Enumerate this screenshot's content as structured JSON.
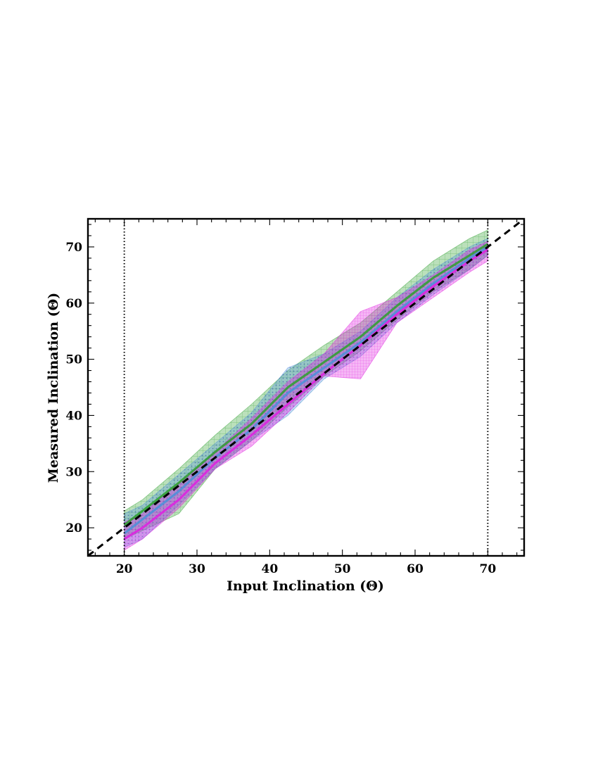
{
  "chart_data": {
    "type": "line",
    "xlabel": "Input Inclination (Θ)",
    "ylabel": "Measured Inclination (Θ)",
    "xlim": [
      15,
      75
    ],
    "ylim": [
      15,
      75
    ],
    "xticks": [
      20,
      30,
      40,
      50,
      60,
      70
    ],
    "yticks": [
      20,
      30,
      40,
      50,
      60,
      70
    ],
    "grid": false,
    "reference_lines": {
      "one_to_one": {
        "style": "dashed",
        "color": "#000000"
      },
      "vertical": [
        20,
        70
      ]
    },
    "series": [
      {
        "color": "#2ca02c",
        "x": [
          20,
          22.5,
          27.5,
          32.5,
          37.5,
          42.5,
          47.5,
          52.5,
          57.5,
          62.5,
          67.5,
          70
        ],
        "y": [
          20.5,
          23,
          28,
          33.5,
          38.5,
          45,
          49.5,
          54,
          59.5,
          64.5,
          68.5,
          70.5
        ],
        "upper": [
          23,
          25,
          30.5,
          36.5,
          42,
          48,
          52.5,
          56.5,
          62,
          67.5,
          71.5,
          73
        ],
        "lower": [
          18,
          19.5,
          22.5,
          30.5,
          35.5,
          41.5,
          47,
          51.5,
          57,
          62,
          66,
          68.5
        ]
      },
      {
        "color": "#4a90d9",
        "x": [
          20,
          22.5,
          27.5,
          32.5,
          37.5,
          42.5,
          47.5,
          52.5,
          57.5,
          62.5,
          67.5,
          70
        ],
        "y": [
          19,
          21.5,
          26.5,
          32.5,
          37.5,
          44,
          48.5,
          53,
          58.5,
          63.5,
          68,
          70
        ],
        "upper": [
          22.5,
          24,
          29.5,
          35,
          40.5,
          48.5,
          51,
          55,
          61,
          66,
          70,
          71.5
        ],
        "lower": [
          16.5,
          18,
          24,
          30.5,
          35.5,
          40,
          46.5,
          50.5,
          56.5,
          61.5,
          66,
          68.5
        ]
      },
      {
        "color": "#e020e0",
        "x": [
          20,
          22.5,
          27.5,
          32.5,
          37.5,
          42.5,
          47.5,
          52.5,
          57.5,
          62.5,
          67.5,
          70
        ],
        "y": [
          18,
          20,
          25,
          31.5,
          36.5,
          42,
          47.5,
          52.5,
          58,
          63,
          67.5,
          69.5
        ],
        "upper": [
          21,
          22.5,
          28,
          33.5,
          39.5,
          46,
          51,
          58.5,
          61,
          65,
          69.5,
          71
        ],
        "lower": [
          16,
          18,
          23.5,
          30.5,
          34.5,
          40.5,
          47,
          46.5,
          56.5,
          61,
          65.5,
          67.5
        ]
      }
    ]
  }
}
